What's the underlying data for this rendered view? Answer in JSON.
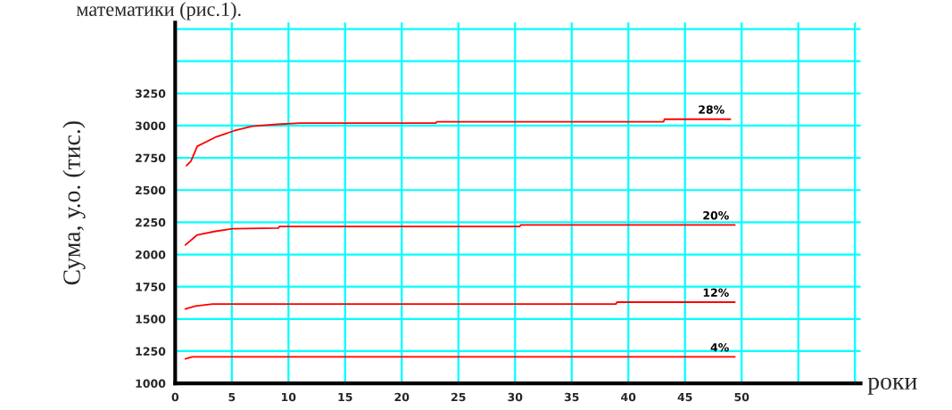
{
  "chart_data": {
    "type": "line",
    "ylabel": "Сума, у.о. (тис.)",
    "xlabel": "роки",
    "annotations": [
      "математики (рис.1)."
    ],
    "xlim": [
      0,
      60.5
    ],
    "xticks": [
      0,
      5,
      10,
      15,
      20,
      25,
      30,
      35,
      40,
      45,
      50,
      {
        "value": 55,
        "label": null
      },
      {
        "value": 60,
        "label": null
      }
    ],
    "ylim": [
      1000,
      3800
    ],
    "yticks": [
      1000,
      1250,
      1500,
      1750,
      2000,
      2250,
      2500,
      2750,
      3000,
      3250,
      {
        "value": 3500,
        "label": null
      },
      {
        "value": 3750,
        "label": null
      }
    ],
    "grid": true,
    "legend": false,
    "marker": "none",
    "line_style": "solid",
    "series": [
      {
        "name": "28%",
        "color": "#ff0000",
        "x": [
          1.0,
          1.4,
          1.95,
          3.55,
          5.2,
          6.8,
          9.0,
          11,
          23,
          23.1,
          43.1,
          43.2,
          49
        ],
        "values": [
          2690,
          2725,
          2840,
          2910,
          2960,
          2995,
          3010,
          3020,
          3020,
          3030,
          3030,
          3050,
          3050
        ]
      },
      {
        "name": "20%",
        "color": "#ff0000",
        "x": [
          0.9,
          1.95,
          3.55,
          5.05,
          9.1,
          9.2,
          30.4,
          30.5,
          49.4
        ],
        "values": [
          2074,
          2152,
          2180,
          2200,
          2205,
          2217,
          2217,
          2229,
          2229
        ]
      },
      {
        "name": "12%",
        "color": "#ff0000",
        "x": [
          0.9,
          1.8,
          3.3,
          38.9,
          39.0,
          49.4
        ],
        "values": [
          1577,
          1600,
          1615,
          1615,
          1630,
          1630
        ]
      },
      {
        "name": "4%",
        "color": "#ff0000",
        "x": [
          0.9,
          1.5,
          49.4
        ],
        "values": [
          1190,
          1205,
          1205
        ]
      }
    ]
  }
}
